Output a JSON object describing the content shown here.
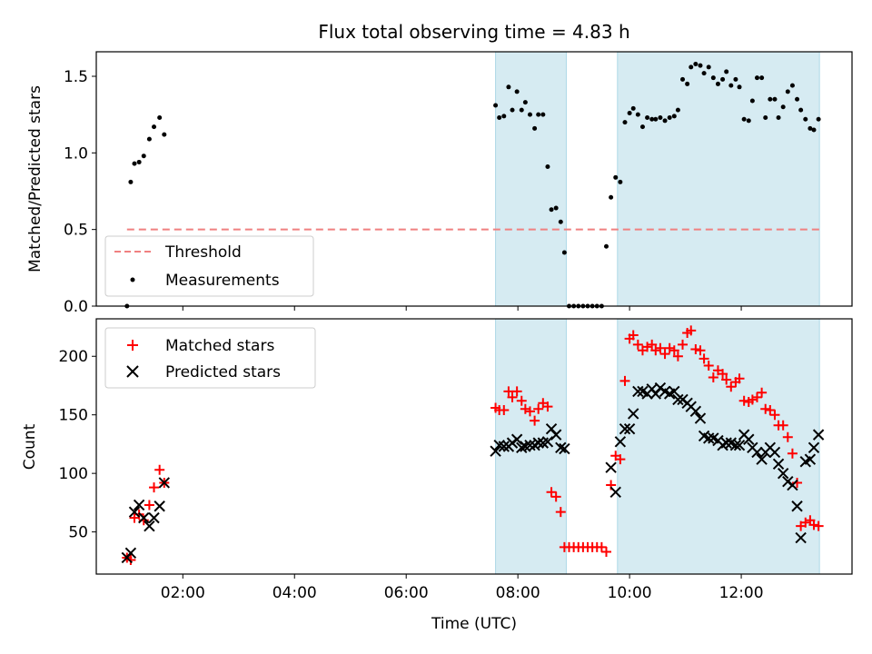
{
  "title": "Flux total observing time = 4.83 h",
  "colors": {
    "band": "#add8e6",
    "threshold": "#f08080",
    "measurement": "#000000",
    "matched": "#ff0000",
    "predicted": "#000000"
  },
  "shaded_intervals": [
    [
      "07:36",
      "08:52"
    ],
    [
      "09:47",
      "13:24"
    ]
  ],
  "chart_data": [
    {
      "type": "scatter",
      "panel": "top",
      "ylabel": "Matched/Predicted stars",
      "xlabel": "",
      "ylim": [
        0,
        1.66
      ],
      "yticks": [
        "0.0",
        "0.5",
        "1.0",
        "1.5"
      ],
      "ytick_values": [
        0,
        0.5,
        1.0,
        1.5
      ],
      "legend": {
        "position": "lower-left",
        "entries": [
          "Threshold",
          "Measurements"
        ]
      },
      "threshold": {
        "name": "Threshold",
        "y": 0.5,
        "x_range": [
          "01:00",
          "13:24"
        ]
      },
      "series": [
        {
          "name": "Measurements",
          "marker": "dot",
          "x": [
            "01:00",
            "01:04",
            "01:08",
            "01:13",
            "01:18",
            "01:24",
            "01:29",
            "01:35",
            "01:40",
            "07:36",
            "07:40",
            "07:45",
            "07:50",
            "07:54",
            "07:59",
            "08:04",
            "08:08",
            "08:13",
            "08:18",
            "08:22",
            "08:27",
            "08:32",
            "08:36",
            "08:41",
            "08:46",
            "08:50",
            "08:55",
            "09:00",
            "09:05",
            "09:10",
            "09:15",
            "09:20",
            "09:25",
            "09:30",
            "09:35",
            "09:40",
            "09:45",
            "09:50",
            "09:55",
            "10:00",
            "10:04",
            "10:09",
            "10:14",
            "10:19",
            "10:24",
            "10:28",
            "10:33",
            "10:38",
            "10:43",
            "10:48",
            "10:52",
            "10:57",
            "11:02",
            "11:06",
            "11:11",
            "11:16",
            "11:20",
            "11:25",
            "11:30",
            "11:35",
            "11:40",
            "11:44",
            "11:49",
            "11:54",
            "11:58",
            "12:03",
            "12:08",
            "12:12",
            "12:17",
            "12:22",
            "12:26",
            "12:31",
            "12:36",
            "12:40",
            "12:45",
            "12:50",
            "12:55",
            "13:00",
            "13:04",
            "13:09",
            "13:14",
            "13:18",
            "13:23"
          ],
          "y": [
            0.0,
            0.81,
            0.93,
            0.94,
            0.98,
            1.09,
            1.17,
            1.23,
            1.12,
            1.31,
            1.23,
            1.24,
            1.43,
            1.28,
            1.4,
            1.28,
            1.33,
            1.25,
            1.16,
            1.25,
            1.25,
            0.91,
            0.63,
            0.64,
            0.55,
            0.35,
            0.0,
            0.0,
            0.0,
            0.0,
            0.0,
            0.0,
            0.0,
            0.0,
            0.39,
            0.71,
            0.84,
            0.81,
            1.2,
            1.26,
            1.29,
            1.25,
            1.17,
            1.23,
            1.22,
            1.22,
            1.23,
            1.21,
            1.23,
            1.24,
            1.28,
            1.48,
            1.45,
            1.56,
            1.58,
            1.57,
            1.52,
            1.56,
            1.49,
            1.45,
            1.48,
            1.53,
            1.44,
            1.48,
            1.43,
            1.22,
            1.21,
            1.34,
            1.49,
            1.49,
            1.23,
            1.35,
            1.35,
            1.23,
            1.3,
            1.4,
            1.44,
            1.35,
            1.28,
            1.22,
            1.16,
            1.15,
            1.22
          ]
        }
      ]
    },
    {
      "type": "scatter",
      "panel": "bottom",
      "ylabel": "Count",
      "xlabel": "Time (UTC)",
      "ylim": [
        14,
        232
      ],
      "yticks": [
        "50",
        "100",
        "150",
        "200"
      ],
      "ytick_values": [
        50,
        100,
        150,
        200
      ],
      "xlim": [
        "00:27",
        "13:59"
      ],
      "xticks": [
        "02:00",
        "04:00",
        "06:00",
        "08:00",
        "10:00",
        "12:00"
      ],
      "legend": {
        "position": "top-left",
        "entries": [
          "Matched stars",
          "Predicted stars"
        ]
      },
      "series": [
        {
          "name": "Matched stars",
          "marker": "plus",
          "x": [
            "01:00",
            "01:04",
            "01:08",
            "01:13",
            "01:18",
            "01:24",
            "01:29",
            "01:35",
            "01:40",
            "07:36",
            "07:40",
            "07:45",
            "07:50",
            "07:54",
            "07:59",
            "08:04",
            "08:08",
            "08:13",
            "08:18",
            "08:22",
            "08:27",
            "08:32",
            "08:36",
            "08:41",
            "08:46",
            "08:50",
            "08:55",
            "09:00",
            "09:05",
            "09:10",
            "09:15",
            "09:20",
            "09:25",
            "09:30",
            "09:35",
            "09:40",
            "09:45",
            "09:50",
            "09:55",
            "10:00",
            "10:04",
            "10:09",
            "10:14",
            "10:19",
            "10:24",
            "10:28",
            "10:33",
            "10:38",
            "10:43",
            "10:48",
            "10:52",
            "10:57",
            "11:02",
            "11:06",
            "11:11",
            "11:16",
            "11:20",
            "11:25",
            "11:30",
            "11:35",
            "11:40",
            "11:44",
            "11:49",
            "11:54",
            "11:58",
            "12:03",
            "12:08",
            "12:12",
            "12:17",
            "12:22",
            "12:26",
            "12:31",
            "12:36",
            "12:40",
            "12:45",
            "12:50",
            "12:55",
            "13:00",
            "13:04",
            "13:09",
            "13:14",
            "13:18",
            "13:23"
          ],
          "y": [
            28,
            26,
            62,
            65,
            60,
            73,
            88,
            103,
            92,
            156,
            154,
            154,
            170,
            165,
            170,
            162,
            155,
            153,
            145,
            155,
            160,
            157,
            84,
            80,
            67,
            37,
            37,
            37,
            37,
            37,
            37,
            37,
            37,
            37,
            33,
            90,
            115,
            112,
            179,
            215,
            218,
            210,
            205,
            208,
            210,
            205,
            207,
            202,
            207,
            205,
            200,
            210,
            220,
            222,
            206,
            205,
            198,
            192,
            182,
            188,
            185,
            180,
            174,
            178,
            181,
            162,
            161,
            163,
            165,
            169,
            155,
            154,
            150,
            141,
            141,
            131,
            117,
            92,
            55,
            58,
            60,
            56,
            55
          ],
          "note": ""
        },
        {
          "name": "Predicted stars",
          "marker": "x",
          "x": [
            "01:00",
            "01:04",
            "01:08",
            "01:13",
            "01:18",
            "01:24",
            "01:29",
            "01:35",
            "01:40",
            "07:36",
            "07:40",
            "07:45",
            "07:50",
            "07:54",
            "07:59",
            "08:04",
            "08:08",
            "08:13",
            "08:18",
            "08:22",
            "08:27",
            "08:32",
            "08:36",
            "08:41",
            "08:46",
            "08:50",
            "09:40",
            "09:45",
            "09:50",
            "09:55",
            "10:00",
            "10:04",
            "10:09",
            "10:14",
            "10:19",
            "10:24",
            "10:28",
            "10:33",
            "10:38",
            "10:43",
            "10:48",
            "10:52",
            "10:57",
            "11:02",
            "11:06",
            "11:11",
            "11:16",
            "11:20",
            "11:25",
            "11:30",
            "11:35",
            "11:40",
            "11:44",
            "11:49",
            "11:54",
            "11:58",
            "12:03",
            "12:08",
            "12:12",
            "12:17",
            "12:22",
            "12:26",
            "12:31",
            "12:36",
            "12:40",
            "12:45",
            "12:50",
            "12:55",
            "13:00",
            "13:04",
            "13:09",
            "13:14",
            "13:18",
            "13:23"
          ],
          "y": [
            28,
            32,
            67,
            73,
            62,
            55,
            62,
            72,
            92,
            119,
            124,
            123,
            123,
            126,
            129,
            122,
            123,
            124,
            124,
            126,
            126,
            127,
            138,
            133,
            122,
            121,
            105,
            84,
            127,
            138,
            138,
            151,
            170,
            170,
            168,
            172,
            168,
            173,
            170,
            168,
            170,
            163,
            163,
            160,
            157,
            153,
            147,
            132,
            130,
            130,
            128,
            124,
            126,
            126,
            124,
            124,
            133,
            129,
            122,
            118,
            112,
            118,
            122,
            118,
            108,
            100,
            93,
            90,
            72,
            45,
            110,
            112,
            122,
            133
          ]
        }
      ]
    }
  ]
}
